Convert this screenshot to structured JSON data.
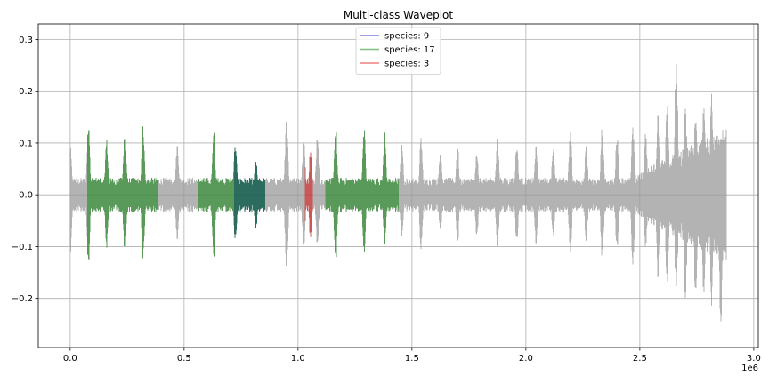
{
  "chart_data": {
    "type": "line",
    "title": "Multi-class Waveplot",
    "xlabel": "",
    "ylabel": "",
    "x_multiplier_label": "1e6",
    "xlim": [
      -140000,
      3020000
    ],
    "ylim": [
      -0.295,
      0.33
    ],
    "x_ticks": [
      0,
      500000,
      1000000,
      1500000,
      2000000,
      2500000,
      3000000
    ],
    "x_tick_labels": [
      "0.0",
      "0.5",
      "1.0",
      "1.5",
      "2.0",
      "2.5",
      "3.0"
    ],
    "y_ticks": [
      -0.2,
      -0.1,
      0.0,
      0.1,
      0.2,
      0.3
    ],
    "y_tick_labels": [
      "−0.2",
      "−0.1",
      "0.0",
      "0.1",
      "0.2",
      "0.3"
    ],
    "grid": true,
    "legend_position": "top-center",
    "series": [
      {
        "name": "species: 9",
        "color": "#0000cc",
        "segments": [
          [
            720000,
            855000
          ]
        ]
      },
      {
        "name": "species: 17",
        "color": "#008000",
        "segments": [
          [
            75000,
            385000
          ],
          [
            560000,
            855000
          ],
          [
            1120000,
            1440000
          ]
        ]
      },
      {
        "name": "species: 3",
        "color": "#dd0000",
        "segments": [
          [
            1030000,
            1065000
          ]
        ]
      }
    ],
    "background_waveform": {
      "color": "#999999",
      "x_range": [
        0,
        2880000
      ],
      "baseline_amplitude": 0.03,
      "spikes": [
        {
          "x": 0,
          "max": 0.1,
          "min": -0.12
        },
        {
          "x": 80000,
          "max": 0.145,
          "min": -0.145
        },
        {
          "x": 160000,
          "max": 0.11,
          "min": -0.105
        },
        {
          "x": 240000,
          "max": 0.13,
          "min": -0.12
        },
        {
          "x": 320000,
          "max": 0.14,
          "min": -0.13
        },
        {
          "x": 470000,
          "max": 0.105,
          "min": -0.095
        },
        {
          "x": 630000,
          "max": 0.125,
          "min": -0.125
        },
        {
          "x": 725000,
          "max": 0.105,
          "min": -0.095
        },
        {
          "x": 815000,
          "max": 0.07,
          "min": -0.07
        },
        {
          "x": 950000,
          "max": 0.17,
          "min": -0.165
        },
        {
          "x": 1025000,
          "max": 0.115,
          "min": -0.11
        },
        {
          "x": 1055000,
          "max": 0.09,
          "min": -0.09
        },
        {
          "x": 1085000,
          "max": 0.115,
          "min": -0.1
        },
        {
          "x": 1165000,
          "max": 0.145,
          "min": -0.145
        },
        {
          "x": 1290000,
          "max": 0.135,
          "min": -0.12
        },
        {
          "x": 1380000,
          "max": 0.125,
          "min": -0.1
        },
        {
          "x": 1455000,
          "max": 0.11,
          "min": -0.09
        },
        {
          "x": 1540000,
          "max": 0.115,
          "min": -0.11
        },
        {
          "x": 1625000,
          "max": 0.095,
          "min": -0.08
        },
        {
          "x": 1700000,
          "max": 0.1,
          "min": -0.1
        },
        {
          "x": 1785000,
          "max": 0.09,
          "min": -0.09
        },
        {
          "x": 1875000,
          "max": 0.12,
          "min": -0.11
        },
        {
          "x": 1960000,
          "max": 0.105,
          "min": -0.1
        },
        {
          "x": 2045000,
          "max": 0.1,
          "min": -0.1
        },
        {
          "x": 2120000,
          "max": 0.095,
          "min": -0.085
        },
        {
          "x": 2195000,
          "max": 0.135,
          "min": -0.12
        },
        {
          "x": 2265000,
          "max": 0.1,
          "min": -0.095
        },
        {
          "x": 2335000,
          "max": 0.14,
          "min": -0.13
        },
        {
          "x": 2400000,
          "max": 0.12,
          "min": -0.11
        },
        {
          "x": 2470000,
          "max": 0.145,
          "min": -0.15
        },
        {
          "x": 2525000,
          "max": 0.13,
          "min": -0.11
        },
        {
          "x": 2580000,
          "max": 0.16,
          "min": -0.165
        },
        {
          "x": 2620000,
          "max": 0.195,
          "min": -0.19
        },
        {
          "x": 2660000,
          "max": 0.3,
          "min": -0.21
        },
        {
          "x": 2700000,
          "max": 0.175,
          "min": -0.21
        },
        {
          "x": 2745000,
          "max": 0.17,
          "min": -0.22
        },
        {
          "x": 2780000,
          "max": 0.195,
          "min": -0.22
        },
        {
          "x": 2815000,
          "max": 0.2,
          "min": -0.22
        },
        {
          "x": 2855000,
          "max": 0.12,
          "min": -0.27
        }
      ],
      "rising_noise": {
        "start_x": 2450000,
        "end_x": 2880000,
        "start_amp": 0.03,
        "end_amp": 0.12
      }
    }
  }
}
